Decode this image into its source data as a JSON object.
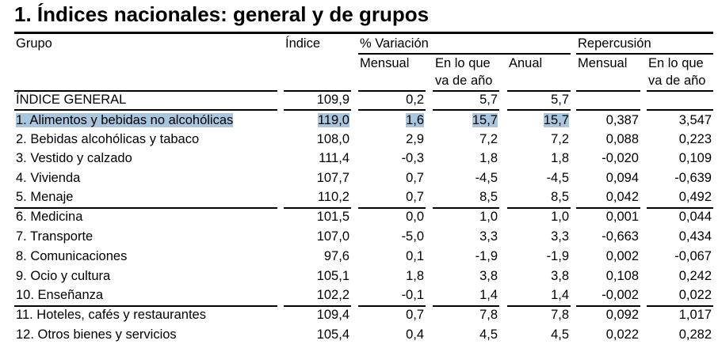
{
  "title": "1. Índices nacionales: general y de grupos",
  "highlight_color": "#a8c6de",
  "header": {
    "grupo": "Grupo",
    "indice": "Índice",
    "variacion": "% Variación",
    "repercusion": "Repercusión",
    "var_mensual": "Mensual",
    "var_ano_1": "En lo que",
    "var_ano_2": "va de año",
    "var_anual": "Anual",
    "rep_mensual": "Mensual",
    "rep_ano_1": "En lo que",
    "rep_ano_2": "va de año"
  },
  "rows": [
    {
      "grupo": "ÍNDICE GENERAL",
      "indice": "109,9",
      "var_mensual": "0,2",
      "var_ano": "5,7",
      "var_anual": "5,7",
      "rep_mensual": "",
      "rep_ano": ""
    },
    {
      "grupo": "1. Alimentos y bebidas no alcohólicas",
      "indice": "119,0",
      "var_mensual": "1,6",
      "var_ano": "15,7",
      "var_anual": "15,7",
      "rep_mensual": "0,387",
      "rep_ano": "3,547",
      "highlighted": true
    },
    {
      "grupo": "2. Bebidas alcohólicas y tabaco",
      "indice": "108,0",
      "var_mensual": "2,9",
      "var_ano": "7,2",
      "var_anual": "7,2",
      "rep_mensual": "0,088",
      "rep_ano": "0,223"
    },
    {
      "grupo": "3. Vestido y calzado",
      "indice": "111,4",
      "var_mensual": "-0,3",
      "var_ano": "1,8",
      "var_anual": "1,8",
      "rep_mensual": "-0,020",
      "rep_ano": "0,109"
    },
    {
      "grupo": "4. Vivienda",
      "indice": "107,7",
      "var_mensual": "0,7",
      "var_ano": "-4,5",
      "var_anual": "-4,5",
      "rep_mensual": "0,094",
      "rep_ano": "-0,639"
    },
    {
      "grupo": "5. Menaje",
      "indice": "110,2",
      "var_mensual": "0,7",
      "var_ano": "8,5",
      "var_anual": "8,5",
      "rep_mensual": "0,042",
      "rep_ano": "0,492"
    },
    {
      "grupo": "6. Medicina",
      "indice": "101,5",
      "var_mensual": "0,0",
      "var_ano": "1,0",
      "var_anual": "1,0",
      "rep_mensual": "0,001",
      "rep_ano": "0,044"
    },
    {
      "grupo": "7. Transporte",
      "indice": "107,0",
      "var_mensual": "-5,0",
      "var_ano": "3,3",
      "var_anual": "3,3",
      "rep_mensual": "-0,663",
      "rep_ano": "0,434"
    },
    {
      "grupo": "8. Comunicaciones",
      "indice": "97,6",
      "var_mensual": "0,1",
      "var_ano": "-1,9",
      "var_anual": "-1,9",
      "rep_mensual": "0,002",
      "rep_ano": "-0,067"
    },
    {
      "grupo": "9. Ocio y cultura",
      "indice": "105,1",
      "var_mensual": "1,8",
      "var_ano": "3,8",
      "var_anual": "3,8",
      "rep_mensual": "0,108",
      "rep_ano": "0,242"
    },
    {
      "grupo": "10. Enseñanza",
      "indice": "102,2",
      "var_mensual": "-0,1",
      "var_ano": "1,4",
      "var_anual": "1,4",
      "rep_mensual": "-0,002",
      "rep_ano": "0,022"
    },
    {
      "grupo": "11. Hoteles, cafés y restaurantes",
      "indice": "109,4",
      "var_mensual": "0,7",
      "var_ano": "7,8",
      "var_anual": "7,8",
      "rep_mensual": "0,092",
      "rep_ano": "1,017"
    },
    {
      "grupo": "12. Otros bienes y servicios",
      "indice": "105,4",
      "var_mensual": "0,4",
      "var_ano": "4,5",
      "var_anual": "4,5",
      "rep_mensual": "0,022",
      "rep_ano": "0,282"
    }
  ]
}
